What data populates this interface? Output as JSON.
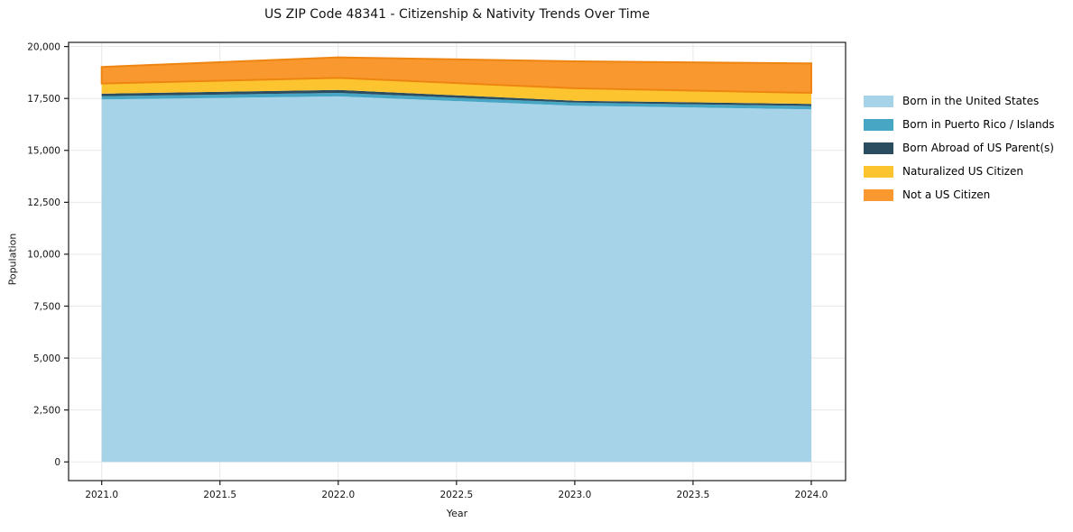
{
  "figure": {
    "background": "#ffffff",
    "grid_color": "#e8e8e8",
    "spine_color": "#1a1a1a",
    "tick_color": "#1a1a1a",
    "label_color": "#141414"
  },
  "chart_data": {
    "type": "area",
    "stacked": true,
    "title": "US ZIP Code 48341 - Citizenship & Nativity Trends Over Time",
    "xlabel": "Year",
    "ylabel": "Population",
    "x": [
      2021,
      2022,
      2023,
      2024
    ],
    "series": [
      {
        "name": "Born in the United States",
        "color": "#a7d3e8",
        "values": [
          17450,
          17600,
          17150,
          16980
        ]
      },
      {
        "name": "Born in Puerto Rico / Islands",
        "color": "#46a6c4",
        "values": [
          160,
          170,
          150,
          160
        ]
      },
      {
        "name": "Born Abroad of US Parent(s)",
        "color": "#2c4d5f",
        "values": [
          120,
          140,
          90,
          100
        ]
      },
      {
        "name": "Naturalized US Citizen",
        "color": "#fcc52f",
        "values": [
          490,
          580,
          600,
          530
        ]
      },
      {
        "name": "Not a US Citizen",
        "color": "#f8982e",
        "edge_color": "#ee8512",
        "values": [
          800,
          990,
          1300,
          1420
        ]
      }
    ],
    "totals": [
      19020,
      19480,
      19290,
      19190
    ],
    "xlim": [
      2020.86,
      2024.145
    ],
    "ylim": [
      -900,
      20200
    ],
    "xticks": [
      2021.0,
      2021.5,
      2022.0,
      2022.5,
      2023.0,
      2023.5,
      2024.0
    ],
    "xtick_labels": [
      "2021.0",
      "2021.5",
      "2022.0",
      "2022.5",
      "2023.0",
      "2023.5",
      "2024.0"
    ],
    "yticks": [
      0,
      2500,
      5000,
      7500,
      10000,
      12500,
      15000,
      17500,
      20000
    ],
    "ytick_labels": [
      "0",
      "2,500",
      "5,000",
      "7,500",
      "10,000",
      "12,500",
      "15,000",
      "17,500",
      "20,000"
    ],
    "grid": true,
    "legend_position": "right"
  }
}
